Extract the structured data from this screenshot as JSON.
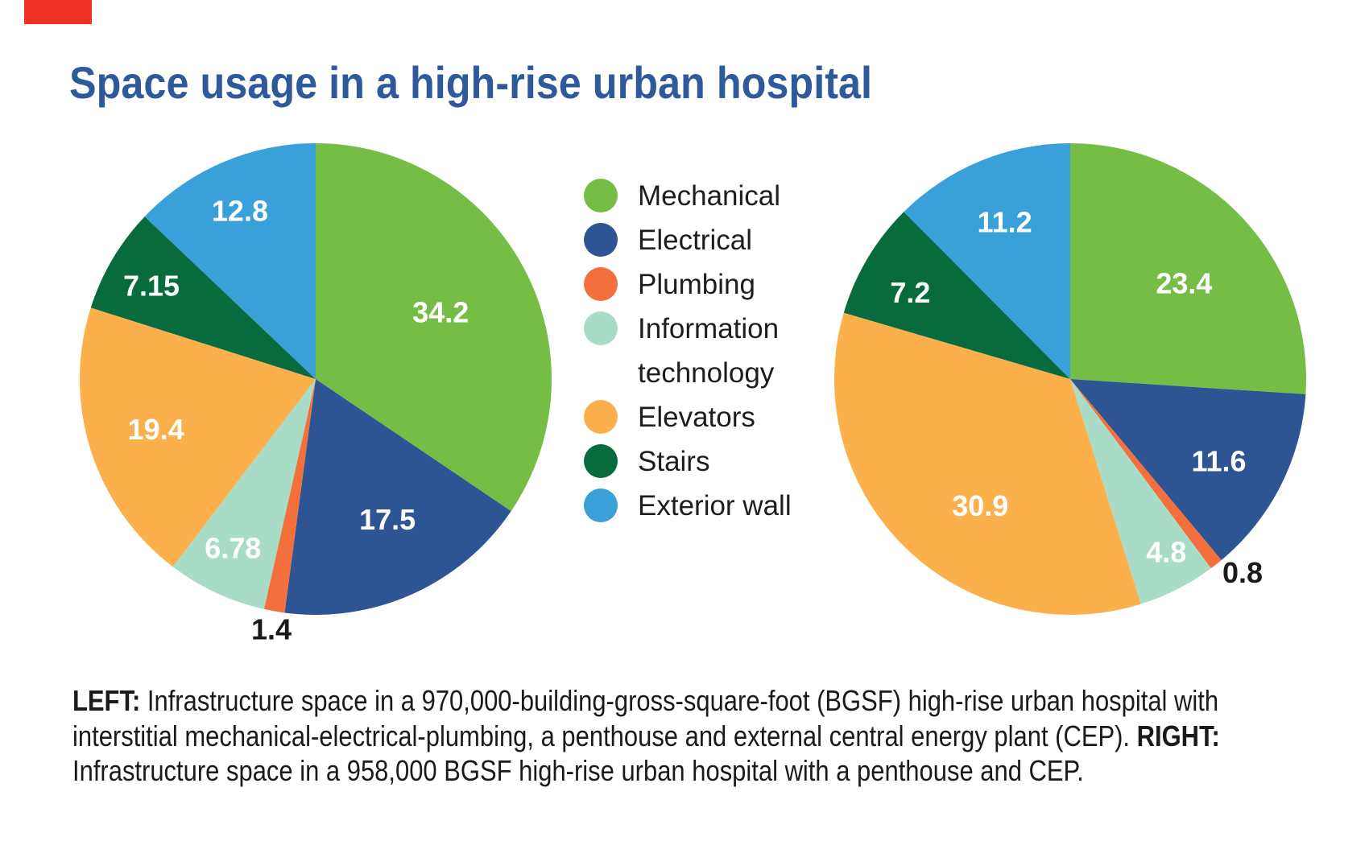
{
  "page": {
    "background": "#ffffff",
    "accent_bar_color": "#ee3124",
    "text_color": "#1d1d1b"
  },
  "title": {
    "text": "Space usage in a high-rise urban hospital",
    "color": "#2e5a9c"
  },
  "legend": {
    "position": "center-between-pies",
    "items": [
      {
        "label": "Mechanical",
        "color": "#76bd45"
      },
      {
        "label": "Electrical",
        "color": "#2e5493"
      },
      {
        "label": "Plumbing",
        "color": "#f3703c"
      },
      {
        "label": "Information technology",
        "color": "#a9dcc6",
        "wrap": [
          "Information",
          "technology"
        ]
      },
      {
        "label": "Elevators",
        "color": "#fbb04c"
      },
      {
        "label": "Stairs",
        "color": "#076b3d"
      },
      {
        "label": "Exterior wall",
        "color": "#3aa0d9"
      }
    ]
  },
  "chart_data": [
    {
      "type": "pie",
      "name": "left-pie",
      "start_angle_deg": 0,
      "direction": "clockwise",
      "label_color_inside": "#ffffff",
      "label_color_outside": "#1a1a1a",
      "slices": [
        {
          "label": "Mechanical",
          "value": 34.2,
          "color": "#76bd45",
          "label_angle": 62,
          "label_r": 0.6
        },
        {
          "label": "Electrical",
          "value": 17.5,
          "color": "#2e5493",
          "label_angle": 153,
          "label_r": 0.67
        },
        {
          "label": "Plumbing",
          "value": 1.4,
          "color": "#f3703c",
          "label_angle": 190,
          "label_r": 1.08,
          "outside": true
        },
        {
          "label": "Information technology",
          "value": 6.78,
          "color": "#a9dcc6",
          "label_angle": 206,
          "label_r": 0.8
        },
        {
          "label": "Elevators",
          "value": 19.4,
          "color": "#fbb04c",
          "label_angle": 252.4,
          "label_r": 0.71
        },
        {
          "label": "Stairs",
          "value": 7.15,
          "color": "#076b3d",
          "label_angle": 299.5,
          "label_r": 0.8
        },
        {
          "label": "Exterior wall",
          "value": 12.8,
          "color": "#3aa0d9",
          "label_angle": 335.7,
          "label_r": 0.78
        }
      ]
    },
    {
      "type": "pie",
      "name": "right-pie",
      "start_angle_deg": 0,
      "direction": "clockwise",
      "label_color_inside": "#ffffff",
      "label_color_outside": "#1a1a1a",
      "slices": [
        {
          "label": "Mechanical",
          "value": 23.4,
          "color": "#76bd45",
          "label_angle": 50,
          "label_r": 0.63
        },
        {
          "label": "Electrical",
          "value": 11.6,
          "color": "#2e5493",
          "label_angle": 119,
          "label_r": 0.72
        },
        {
          "label": "Plumbing",
          "value": 0.8,
          "color": "#f3703c",
          "label_angle": 138.4,
          "label_r": 1.1,
          "outside": true
        },
        {
          "label": "Information technology",
          "value": 4.8,
          "color": "#a9dcc6",
          "label_angle": 151,
          "label_r": 0.84
        },
        {
          "label": "Elevators",
          "value": 30.9,
          "color": "#fbb04c",
          "label_angle": 215.3,
          "label_r": 0.66
        },
        {
          "label": "Stairs",
          "value": 7.2,
          "color": "#076b3d",
          "label_angle": 298.3,
          "label_r": 0.77
        },
        {
          "label": "Exterior wall",
          "value": 11.2,
          "color": "#3aa0d9",
          "label_angle": 337.3,
          "label_r": 0.72
        }
      ]
    }
  ],
  "caption": {
    "lines": [
      [
        {
          "b": true,
          "t": "LEFT:"
        },
        {
          "t": " Infrastructure space in a 970,000-building-gross-square-foot (BGSF) high-rise urban hospital with"
        }
      ],
      [
        {
          "t": "interstitial mechanical-electrical-plumbing, a penthouse and external central energy plant (CEP). "
        },
        {
          "b": true,
          "t": "RIGHT:"
        }
      ],
      [
        {
          "t": "Infrastructure space in a 958,000 BGSF high-rise urban hospital with a penthouse and CEP."
        }
      ]
    ]
  }
}
